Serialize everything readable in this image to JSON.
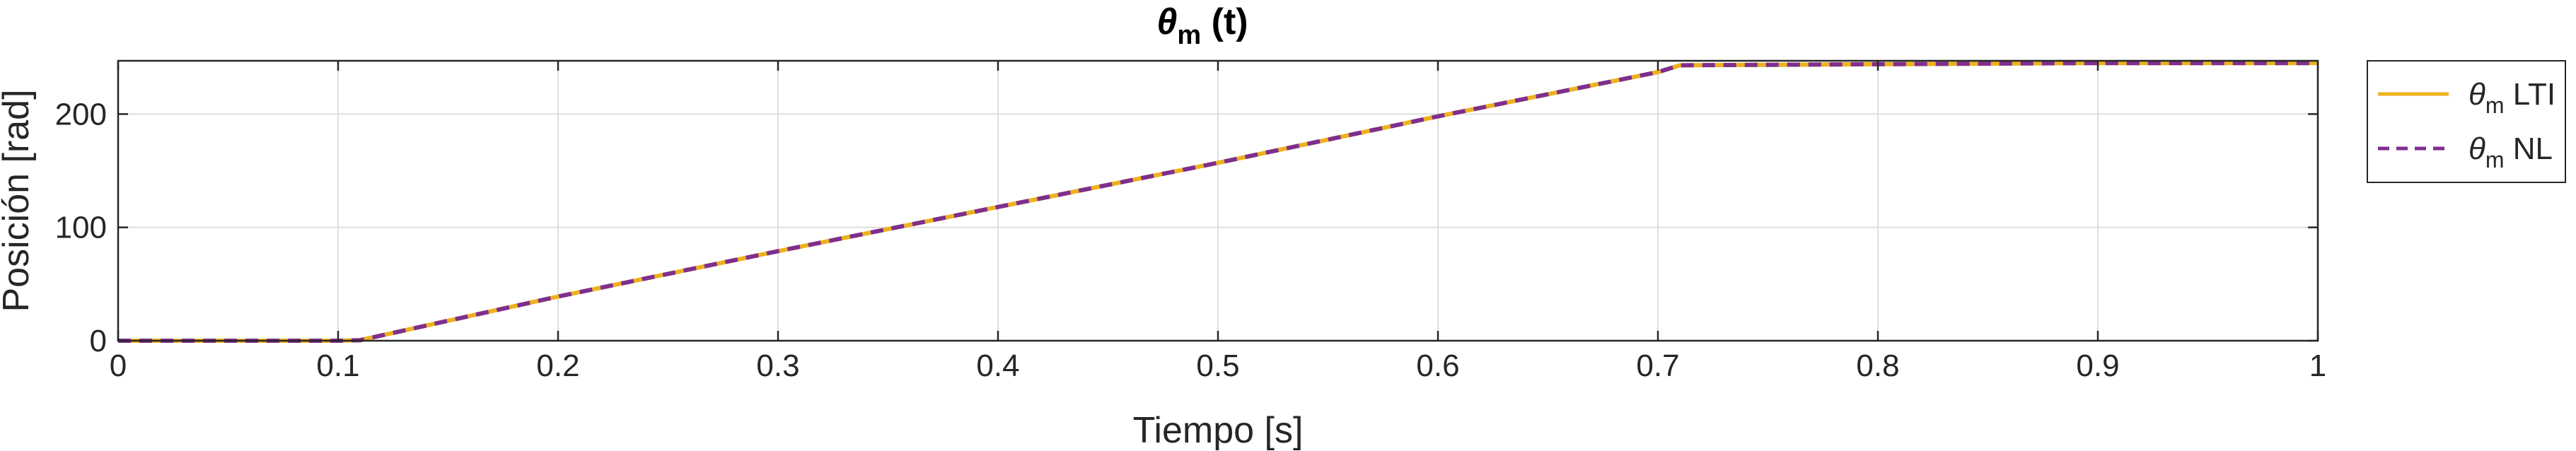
{
  "chart_data": {
    "type": "line",
    "title": {
      "symbol": "θ",
      "sub": "m",
      "rest": " (t)"
    },
    "xlabel": "Tiempo [s]",
    "ylabel": "Posición [rad]",
    "xlim": [
      0,
      1
    ],
    "ylim": [
      0,
      247
    ],
    "xticks": [
      0,
      0.1,
      0.2,
      0.3,
      0.4,
      0.5,
      0.6,
      0.7,
      0.8,
      0.9,
      1
    ],
    "xtick_labels": [
      "0",
      "0.1",
      "0.2",
      "0.3",
      "0.4",
      "0.5",
      "0.6",
      "0.7",
      "0.8",
      "0.9",
      "1"
    ],
    "yticks": [
      0,
      100,
      200
    ],
    "ytick_labels": [
      "0",
      "100",
      "200"
    ],
    "grid": true,
    "legend_position": "outside-right",
    "series": [
      {
        "name": {
          "symbol": "θ",
          "sub": "m",
          "rest": " LTI"
        },
        "color": "#EDB120",
        "style": "solid",
        "x": [
          0,
          0.1,
          0.11,
          0.2,
          0.3,
          0.4,
          0.5,
          0.6,
          0.7,
          0.71,
          0.8,
          0.9,
          1.0
        ],
        "y": [
          0,
          0,
          0.5,
          39,
          79,
          118,
          157,
          198,
          237,
          243,
          244,
          245,
          245
        ]
      },
      {
        "name": {
          "symbol": "θ",
          "sub": "m",
          "rest": " NL"
        },
        "color": "#7E2F8E",
        "style": "dashed",
        "x": [
          0,
          0.1,
          0.11,
          0.2,
          0.3,
          0.4,
          0.5,
          0.6,
          0.7,
          0.71,
          0.8,
          0.9,
          1.0
        ],
        "y": [
          0,
          0,
          0.5,
          39,
          79,
          118,
          157,
          198,
          237,
          243,
          244,
          245,
          245
        ]
      }
    ]
  }
}
